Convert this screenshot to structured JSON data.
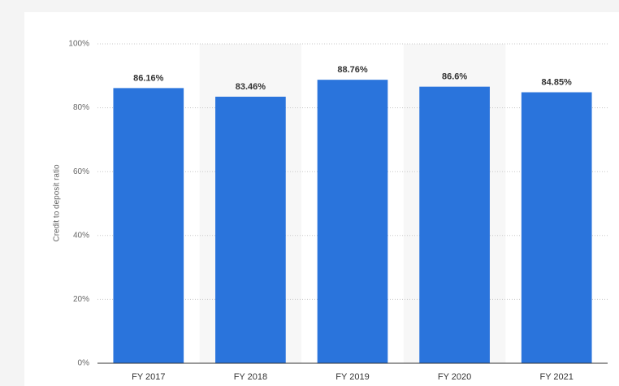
{
  "chart_data": {
    "type": "bar",
    "categories": [
      "FY 2017",
      "FY 2018",
      "FY 2019",
      "FY 2020",
      "FY 2021"
    ],
    "values": [
      86.16,
      83.46,
      88.76,
      86.6,
      84.85
    ],
    "value_labels": [
      "86.16%",
      "83.46%",
      "88.76%",
      "86.6%",
      "84.85%"
    ],
    "color": "#2a74dc",
    "y_label": "Credit to deposit ratio",
    "ylim": [
      0,
      100
    ],
    "yticks": [
      {
        "value": 0,
        "label": "0%"
      },
      {
        "value": 20,
        "label": "20%"
      },
      {
        "value": 40,
        "label": "40%"
      },
      {
        "value": 60,
        "label": "60%"
      },
      {
        "value": 80,
        "label": "80%"
      },
      {
        "value": 100,
        "label": "100%"
      }
    ],
    "grid": true
  }
}
